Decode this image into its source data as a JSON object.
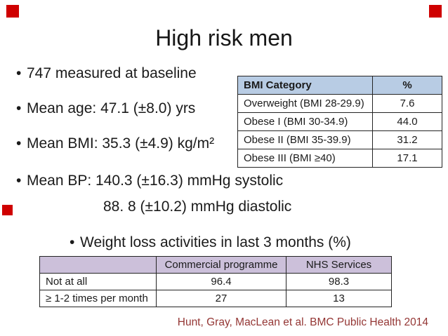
{
  "slide": {
    "title": "High risk men",
    "bullets": [
      {
        "bullet": "•",
        "text": "747 measured at baseline"
      },
      {
        "bullet": "•",
        "text": "Mean age: 47.1 (±8.0) yrs"
      },
      {
        "bullet": "•",
        "text": "Mean BMI: 35.3 (±4.9) kg/m²"
      },
      {
        "bullet": "•",
        "text": "Mean BP: 140.3 (±16.3) mmHg systolic"
      },
      {
        "bullet": "",
        "text": "88. 8 (±10.2) mmHg diastolic"
      },
      {
        "bullet": "•",
        "text": "Weight loss activities in last 3 months (%)"
      }
    ],
    "citation": "Hunt, Gray, MacLean et al. BMC Public Health 2014",
    "citation_color": "#943634"
  },
  "bmi_table": {
    "header_bg": "#b8cce4",
    "headers": [
      "BMI Category",
      "%"
    ],
    "rows": [
      {
        "category": "Overweight (BMI 28-29.9)",
        "pct": "7.6"
      },
      {
        "category": "Obese I (BMI 30-34.9)",
        "pct": "44.0"
      },
      {
        "category": "Obese II (BMI 35-39.9)",
        "pct": "31.2"
      },
      {
        "category": "Obese III (BMI ≥40)",
        "pct": "17.1"
      }
    ]
  },
  "activities_table": {
    "header_bg": "#ccc0da",
    "headers": [
      "",
      "Commercial programme",
      "NHS Services"
    ],
    "rows": [
      {
        "label": "Not at all",
        "commercial": "96.4",
        "nhs": "98.3"
      },
      {
        "label": "≥ 1-2 times per month",
        "commercial": "27",
        "nhs": "13"
      }
    ]
  },
  "markers": {
    "color": "#cf0000"
  }
}
